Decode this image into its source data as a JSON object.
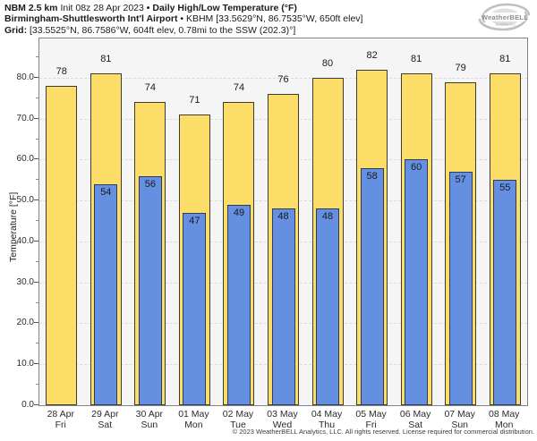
{
  "header": {
    "line1": {
      "model": "NBM 2.5 km",
      "init": "Init 08z 28 Apr 2023",
      "separator": "•",
      "product": "Daily High/Low Temperature (°F)"
    },
    "line2": {
      "station": "Birmingham-Shuttlesworth Int'l Airport",
      "separator": "•",
      "station_info": "KBHM [33.5629°N, 86.7535°W, 650ft elev]"
    },
    "line3": {
      "label": "Grid:",
      "grid_info": "[33.5525°N, 86.7586°W, 604ft elev, 0.78mi to the SSW (202.3)°]"
    }
  },
  "logo": {
    "brand": "WeatherBELL",
    "brand_sub": "Analytics LLC"
  },
  "chart_data": {
    "type": "bar",
    "title": "NBM 2.5 km Init 08z 28 Apr 2023 • Daily High/Low Temperature (°F)",
    "subtitle": "Birmingham-Shuttlesworth Int'l Airport • KBHM [33.5629°N, 86.7535°W, 650ft elev]",
    "grid_note": "Grid: [33.5525°N, 86.7586°W, 604ft elev, 0.78mi to the SSW (202.3)°]",
    "ylabel": "Temperature [°F]",
    "ylim": [
      0,
      89.6
    ],
    "yticks": [
      0,
      10,
      20,
      30,
      40,
      50,
      60,
      70,
      80
    ],
    "ytick_labels": [
      "0.0",
      "10.0",
      "20.0",
      "30.0",
      "40.0",
      "50.0",
      "60.0",
      "70.0",
      "80.0"
    ],
    "grid": "horizontal-dashed",
    "legend_position": "none",
    "categories": [
      {
        "date": "28 Apr",
        "day": "Fri"
      },
      {
        "date": "29 Apr",
        "day": "Sat"
      },
      {
        "date": "30 Apr",
        "day": "Sun"
      },
      {
        "date": "01 May",
        "day": "Mon"
      },
      {
        "date": "02 May",
        "day": "Tue"
      },
      {
        "date": "03 May",
        "day": "Wed"
      },
      {
        "date": "04 May",
        "day": "Thu"
      },
      {
        "date": "05 May",
        "day": "Fri"
      },
      {
        "date": "06 May",
        "day": "Sat"
      },
      {
        "date": "07 May",
        "day": "Sun"
      },
      {
        "date": "08 May",
        "day": "Mon"
      }
    ],
    "series": [
      {
        "name": "Daily High",
        "color": "#FBDD68",
        "values": [
          78,
          81,
          74,
          71,
          74,
          76,
          80,
          82,
          81,
          79,
          81
        ]
      },
      {
        "name": "Daily Low",
        "color": "#6590E2",
        "values": [
          null,
          54,
          56,
          47,
          49,
          48,
          48,
          58,
          60,
          57,
          55
        ]
      }
    ]
  },
  "footer": {
    "copyright": "© 2023 WeatherBELL Analytics, LLC. All rights reserved. License required for commercial distribution."
  },
  "colors": {
    "high_bar": "#FBDD68",
    "high_bar_border": "#3C3C34",
    "low_bar": "#6590E2",
    "low_bar_border": "#2B3C5E",
    "plot_bg": "#F5F5F5",
    "grid_line": "#DADADA",
    "frame": "#848484",
    "text": "#1A1A1A",
    "logo_gray": "#ABABAB"
  }
}
